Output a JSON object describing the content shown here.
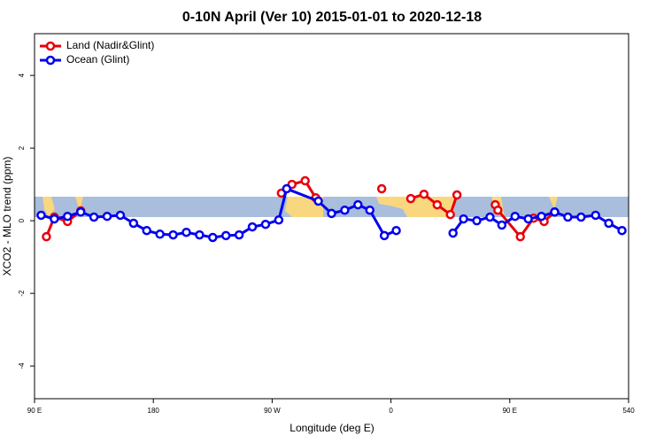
{
  "chart_data": {
    "type": "line",
    "title": "0-10N April (Ver 10)   2015-01-01 to 2020-12-18",
    "xlabel": "Longitude (deg E)",
    "ylabel": "XCO2 - MLO trend (ppm)",
    "xlim": [
      90,
      540
    ],
    "ylim": [
      -4.9,
      5.15
    ],
    "xticks": [
      {
        "value": 90,
        "label": "90 E"
      },
      180,
      {
        "value": 270,
        "label": "90 W"
      },
      {
        "value": 360,
        "label": "0"
      },
      {
        "value": 450,
        "label": "90 E"
      },
      540
    ],
    "yticks": [
      4,
      2,
      0,
      -2,
      -4
    ],
    "legend": "top-left",
    "series": [
      {
        "name": "Land (Nadir&Glint)",
        "color": "#e8000b",
        "x": [
          99,
          105,
          115,
          125,
          null,
          277,
          285,
          295,
          303,
          null,
          353,
          null,
          375,
          385,
          395,
          405,
          410,
          null,
          439,
          441,
          458,
          468,
          476,
          484
        ],
        "values": [
          -0.44,
          0.1,
          -0.02,
          0.27,
          null,
          0.76,
          1.0,
          1.1,
          0.63,
          null,
          0.88,
          null,
          0.61,
          0.73,
          0.44,
          0.17,
          0.71,
          null,
          0.44,
          0.29,
          -0.44,
          0.07,
          -0.02,
          0.24
        ]
      },
      {
        "name": "Ocean (Glint)",
        "color": "#0000ee",
        "x": [
          95,
          105,
          115,
          125,
          135,
          145,
          155,
          165,
          175,
          185,
          195,
          205,
          215,
          225,
          235,
          245,
          255,
          265,
          275,
          281,
          305,
          315,
          325,
          335,
          344,
          355,
          364,
          null,
          407,
          415,
          425,
          435,
          444,
          454,
          464,
          474,
          484,
          494,
          504,
          515,
          525,
          535
        ],
        "values": [
          0.15,
          0.05,
          0.12,
          0.24,
          0.1,
          0.12,
          0.15,
          -0.07,
          -0.27,
          -0.37,
          -0.39,
          -0.32,
          -0.39,
          -0.46,
          -0.41,
          -0.39,
          -0.17,
          -0.1,
          0.02,
          0.88,
          0.54,
          0.2,
          0.29,
          0.44,
          0.29,
          -0.41,
          -0.27,
          null,
          -0.34,
          0.05,
          0.0,
          0.1,
          -0.12,
          0.12,
          0.05,
          0.12,
          0.24,
          0.1,
          0.1,
          0.15,
          -0.07,
          -0.27
        ]
      }
    ]
  }
}
